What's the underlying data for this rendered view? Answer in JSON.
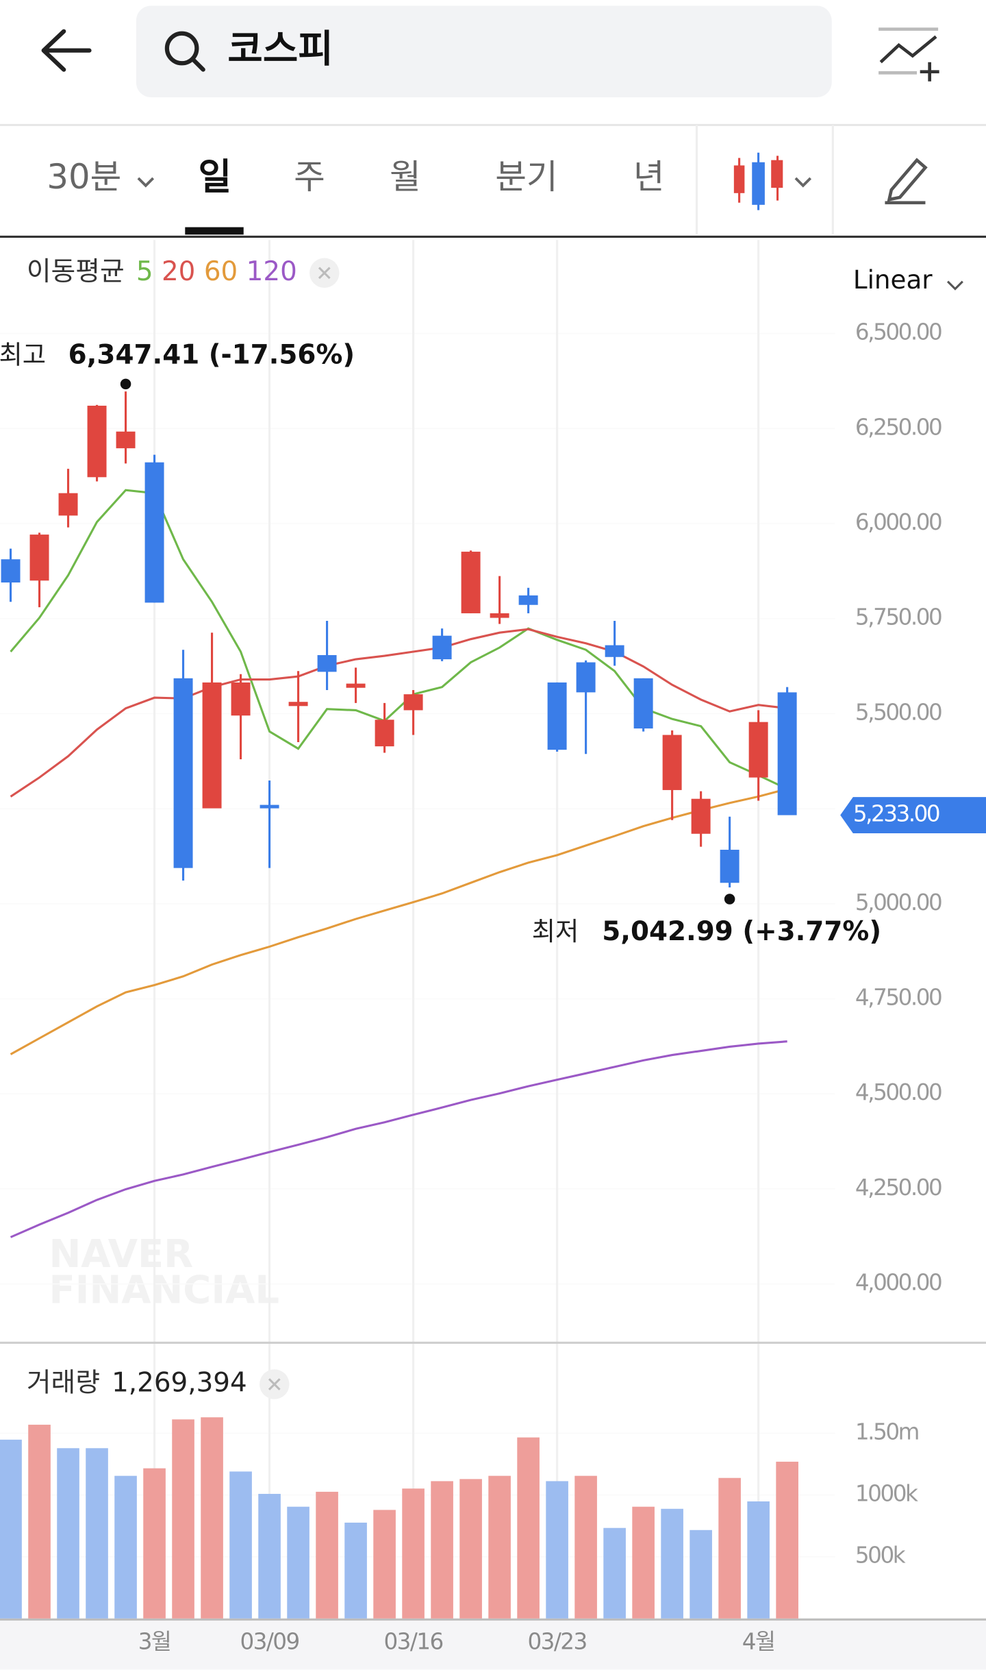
{
  "header": {
    "search_text": "코스피"
  },
  "tabs": [
    "30분",
    "일",
    "주",
    "월",
    "분기",
    "년"
  ],
  "watermark": [
    "NAVER",
    "FINANCIAL"
  ],
  "chart_data": [
    {
      "type": "candlestick",
      "moving_average_label": "이동평균",
      "scale": "Linear",
      "open": [
        5906,
        5850,
        6021,
        6122,
        6198,
        6161,
        5593,
        5251,
        5495,
        5260,
        5520,
        5654,
        5568,
        5414,
        5509,
        5705,
        5764,
        5752,
        5811,
        5582,
        5635,
        5680,
        5593,
        5299,
        5184,
        5142,
        5332,
        5556
      ],
      "high": [
        5934,
        5976,
        6144,
        6312,
        6347.41,
        6181,
        5668,
        5713,
        5604,
        5324,
        5612,
        5744,
        5621,
        5528,
        5562,
        5724,
        5929,
        5862,
        5831,
        5582,
        5640,
        5744,
        5593,
        5456,
        5296,
        5229,
        5509,
        5570
      ],
      "low": [
        5794,
        5780,
        5990,
        6111,
        6158,
        5792,
        5061,
        5251,
        5380,
        5094,
        5425,
        5562,
        5528,
        5397,
        5444,
        5638,
        5764,
        5736,
        5764,
        5400,
        5394,
        5626,
        5453,
        5220,
        5150,
        5042.99,
        5271,
        5233
      ],
      "close": [
        5845,
        5971,
        6080,
        6310,
        6242,
        5792,
        5094,
        5582,
        5582,
        5251,
        5531,
        5610,
        5579,
        5484,
        5551,
        5643,
        5926,
        5764,
        5786,
        5405,
        5556,
        5649,
        5461,
        5444,
        5276,
        5055,
        5478,
        5233
      ],
      "up_color": "#e0463f",
      "down_color": "#3a7de8",
      "series": [
        {
          "name": "5",
          "color": "#6fb84a",
          "values": [
            5663,
            5752,
            5864,
            6004,
            6088,
            6080,
            5906,
            5794,
            5663,
            5453,
            5408,
            5512,
            5509,
            5481,
            5551,
            5570,
            5635,
            5674,
            5724,
            5694,
            5668,
            5612,
            5514,
            5486,
            5467,
            5372,
            5338,
            5302
          ]
        },
        {
          "name": "20",
          "color": "#d9534f",
          "values": [
            5282,
            5332,
            5388,
            5458,
            5514,
            5542,
            5540,
            5570,
            5590,
            5590,
            5598,
            5626,
            5643,
            5652,
            5663,
            5674,
            5696,
            5713,
            5722,
            5702,
            5685,
            5663,
            5624,
            5576,
            5537,
            5506,
            5523,
            5514
          ]
        },
        {
          "name": "60",
          "color": "#e39a3b",
          "values": [
            4604,
            4646,
            4688,
            4730,
            4767,
            4786,
            4809,
            4840,
            4865,
            4887,
            4912,
            4935,
            4960,
            4982,
            5004,
            5027,
            5055,
            5083,
            5108,
            5128,
            5153,
            5178,
            5204,
            5226,
            5246,
            5265,
            5282,
            5302
          ]
        },
        {
          "name": "120",
          "color": "#9b59c6",
          "values": [
            4123,
            4156,
            4187,
            4221,
            4249,
            4271,
            4288,
            4308,
            4327,
            4347,
            4366,
            4386,
            4408,
            4425,
            4445,
            4464,
            4484,
            4501,
            4520,
            4537,
            4554,
            4571,
            4588,
            4602,
            4613,
            4624,
            4632,
            4638
          ]
        }
      ],
      "annotations": [
        {
          "label": "최고",
          "text": "6,347.41 (-17.56%)"
        },
        {
          "label": "최저",
          "text": "5,042.99 (+3.77%)"
        }
      ],
      "last_label": "5,233.00",
      "ylim": [
        3848,
        6746
      ],
      "yticks": [
        {
          "value": 6500,
          "label": "6,500.00"
        },
        {
          "value": 6250,
          "label": "6,250.00"
        },
        {
          "value": 6000,
          "label": "6,000.00"
        },
        {
          "value": 5750,
          "label": "5,750.00"
        },
        {
          "value": 5500,
          "label": "5,500.00"
        },
        {
          "value": 5250,
          "label": "5,250.00"
        },
        {
          "value": 5000,
          "label": "5,000.00"
        },
        {
          "value": 4750,
          "label": "4,750.00"
        },
        {
          "value": 4500,
          "label": "4,500.00"
        },
        {
          "value": 4250,
          "label": "4,250.00"
        },
        {
          "value": 4000,
          "label": "4,000.00"
        }
      ]
    },
    {
      "type": "bar",
      "title": "거래량",
      "latest_label": "1,269,394",
      "categories": [
        null,
        null,
        null,
        null,
        null,
        "3월",
        null,
        null,
        null,
        "03/09",
        null,
        null,
        null,
        null,
        "03/16",
        null,
        null,
        null,
        null,
        "03/23",
        null,
        null,
        null,
        null,
        null,
        null,
        "4월",
        null
      ],
      "values": [
        1448000,
        1569000,
        1379000,
        1379000,
        1155000,
        1216000,
        1612000,
        1629000,
        1190000,
        1009000,
        905000,
        1026000,
        776000,
        879000,
        1052000,
        1112000,
        1129000,
        1155000,
        1466000,
        1112000,
        1155000,
        733000,
        905000,
        888000,
        716000,
        1138000,
        948000,
        1269394
      ],
      "colors": [
        "#9cbcf0",
        "#ee9e9a",
        "#9cbcf0",
        "#9cbcf0",
        "#9cbcf0",
        "#ee9e9a",
        "#ee9e9a",
        "#ee9e9a",
        "#9cbcf0",
        "#9cbcf0",
        "#9cbcf0",
        "#ee9e9a",
        "#9cbcf0",
        "#ee9e9a",
        "#ee9e9a",
        "#ee9e9a",
        "#ee9e9a",
        "#ee9e9a",
        "#ee9e9a",
        "#9cbcf0",
        "#ee9e9a",
        "#9cbcf0",
        "#ee9e9a",
        "#9cbcf0",
        "#9cbcf0",
        "#ee9e9a",
        "#9cbcf0",
        "#ee9e9a"
      ],
      "ylim": [
        0,
        2224000
      ],
      "yticks": [
        {
          "value": 1500000,
          "label": "1.50m"
        },
        {
          "value": 1000000,
          "label": "1000k"
        },
        {
          "value": 500000,
          "label": "500k"
        }
      ]
    }
  ]
}
